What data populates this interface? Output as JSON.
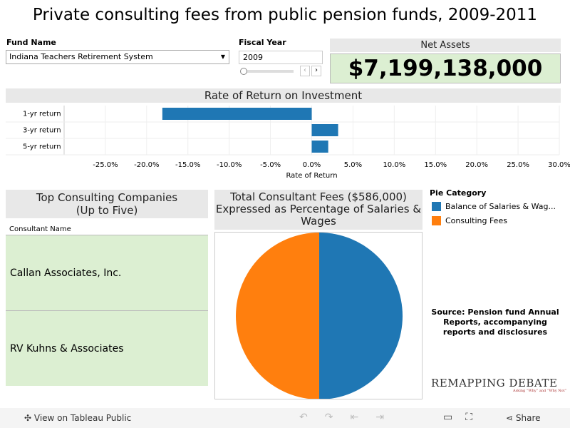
{
  "title": "Private consulting fees from public pension funds, 2009-2011",
  "filters": {
    "fund_label": "Fund Name",
    "fund_value": "Indiana Teachers Retirement System",
    "year_label": "Fiscal Year",
    "year_value": "2009"
  },
  "net_assets": {
    "label": "Net Assets",
    "value": "$7,199,138,000"
  },
  "chart_data": [
    {
      "type": "bar",
      "title": "Rate of Return on Investment",
      "categories": [
        "1-yr return",
        "3-yr return",
        "5-yr return"
      ],
      "values": [
        -18.1,
        3.2,
        2.0
      ],
      "color": "#1f77b4",
      "xlabel": "Rate of Return",
      "xlim": [
        -30,
        30
      ],
      "xticks": [
        {
          "value": -25,
          "label": "-25.0%"
        },
        {
          "value": -20,
          "label": "-20.0%"
        },
        {
          "value": -15,
          "label": "-15.0%"
        },
        {
          "value": -10,
          "label": "-10.0%"
        },
        {
          "value": -5,
          "label": "-5.0%"
        },
        {
          "value": 0,
          "label": "0.0%"
        },
        {
          "value": 5,
          "label": "5.0%"
        },
        {
          "value": 10,
          "label": "10.0%"
        },
        {
          "value": 15,
          "label": "15.0%"
        },
        {
          "value": 20,
          "label": "20.0%"
        },
        {
          "value": 25,
          "label": "25.0%"
        },
        {
          "value": 30,
          "label": "30.0%"
        }
      ]
    },
    {
      "type": "pie",
      "title": "Total Consultant Fees ($586,000) Expressed as Percentage of Salaries & Wages",
      "legend_title": "Pie Category",
      "categories": [
        "Balance of Salaries & Wag...",
        "Consulting Fees"
      ],
      "values": [
        50,
        50
      ],
      "colors": [
        "#1f77b4",
        "#ff7f0e"
      ]
    }
  ],
  "table": {
    "title": "Top Consulting Companies (Up to Five)",
    "column": "Consultant Name",
    "rows": [
      "Callan Associates, Inc.",
      "RV Kuhns & Associates"
    ]
  },
  "source": "Source: Pension fund Annual Reports, accompanying reports and disclosures",
  "logo": {
    "name": "REMAPPING DEBATE",
    "tagline": "Asking “Why” and “Why Not”"
  },
  "footer": {
    "view": "View on Tableau Public",
    "share": "Share"
  }
}
